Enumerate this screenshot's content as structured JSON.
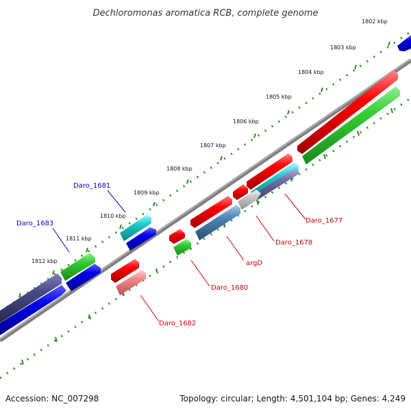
{
  "title": "Dechloromonas aromatica RCB, complete genome",
  "footer": {
    "accession": "Accession: NC_007298",
    "summary": "Topology: circular; Length: 4,501,104 bp; Genes: 4,249"
  },
  "ticks": [
    "1802 kbp",
    "1803 kbp",
    "1804 kbp",
    "1805 kbp",
    "1806 kbp",
    "1807 kbp",
    "1808 kbp",
    "1809 kbp",
    "1810 kbp",
    "1811 kbp",
    "1812 kbp"
  ],
  "gene_labels": {
    "daro_1681": "Daro_1681",
    "daro_1683": "Daro_1683",
    "daro_1677": "Daro_1677",
    "daro_1678": "Daro_1678",
    "argd": "argD",
    "daro_1680": "Daro_1680",
    "daro_1682": "Daro_1682"
  },
  "colors": {
    "forward_label": "#0000cc",
    "reverse_label": "#cc0000",
    "backbone": "#808080",
    "tick_marks": "#228B22"
  }
}
